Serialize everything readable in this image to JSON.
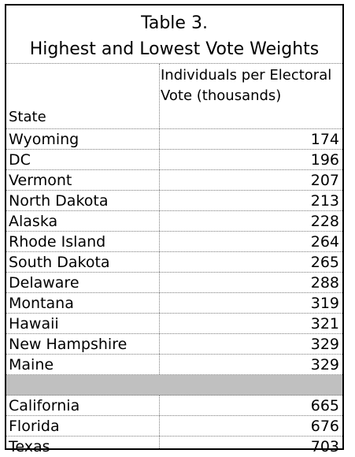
{
  "table": {
    "title_line1": "Table 3.",
    "title_line2": "Highest and Lowest Vote Weights",
    "columns": {
      "state": "State",
      "value": "Individuals per Electoral Vote (thousands)"
    },
    "rows": [
      {
        "state": "Wyoming",
        "value": "174"
      },
      {
        "state": "DC",
        "value": "196"
      },
      {
        "state": "Vermont",
        "value": "207"
      },
      {
        "state": "North Dakota",
        "value": "213"
      },
      {
        "state": "Alaska",
        "value": "228"
      },
      {
        "state": "Rhode Island",
        "value": "264"
      },
      {
        "state": "South Dakota",
        "value": "265"
      },
      {
        "state": "Delaware",
        "value": "288"
      },
      {
        "state": "Montana",
        "value": "319"
      },
      {
        "state": "Hawaii",
        "value": "321"
      },
      {
        "state": "New Hampshire",
        "value": "329"
      },
      {
        "state": "Maine",
        "value": "329"
      },
      {
        "state": "",
        "value": "",
        "separator": true
      },
      {
        "state": "California",
        "value": "665"
      },
      {
        "state": "Florida",
        "value": "676"
      },
      {
        "state": "Texas",
        "value": "703"
      }
    ]
  },
  "colors": {
    "border": "#000000",
    "separator": "#c0c0c0",
    "gridline": "#7a7a7a"
  }
}
